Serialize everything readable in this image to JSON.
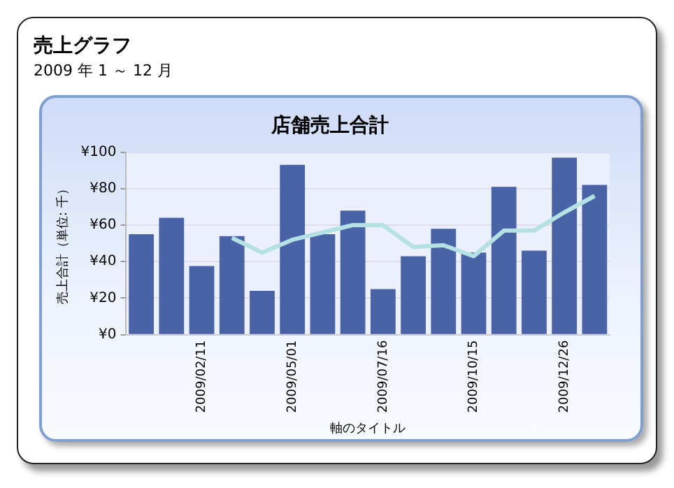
{
  "chart_data": {
    "type": "bar",
    "title": "店舗売上合計",
    "subtitle": "2009 年 1 ～ 12 月",
    "annotations": [
      "売上グラフ"
    ],
    "xlabel": "軸のタイトル",
    "ylabel": "売上合計（単位: 千）",
    "categories": [
      null,
      null,
      "2009/02/11",
      null,
      null,
      "2009/05/01",
      null,
      null,
      "2009/07/16",
      null,
      null,
      "2009/10/15",
      null,
      null,
      "2009/12/26",
      null
    ],
    "series": [
      {
        "color": "#4a62a6",
        "values": [
          55,
          64,
          37.6,
          54,
          24,
          93,
          55,
          68,
          25,
          43,
          58,
          45,
          81,
          46,
          97,
          82
        ]
      },
      {
        "type": "line",
        "color": "#b4e2e4",
        "values": [
          null,
          null,
          null,
          53,
          45,
          52,
          56,
          60,
          60,
          48,
          49,
          43,
          57,
          57,
          67,
          76
        ]
      }
    ],
    "ylim": [
      0,
      100
    ],
    "yticks": [
      {
        "value": 0,
        "label": "¥0"
      },
      {
        "value": 20,
        "label": "¥20"
      },
      {
        "value": 40,
        "label": "¥40"
      },
      {
        "value": 60,
        "label": "¥60"
      },
      {
        "value": 80,
        "label": "¥80"
      },
      {
        "value": 100,
        "label": "¥100"
      }
    ],
    "grid": "y",
    "legend": false,
    "marker": "none"
  }
}
